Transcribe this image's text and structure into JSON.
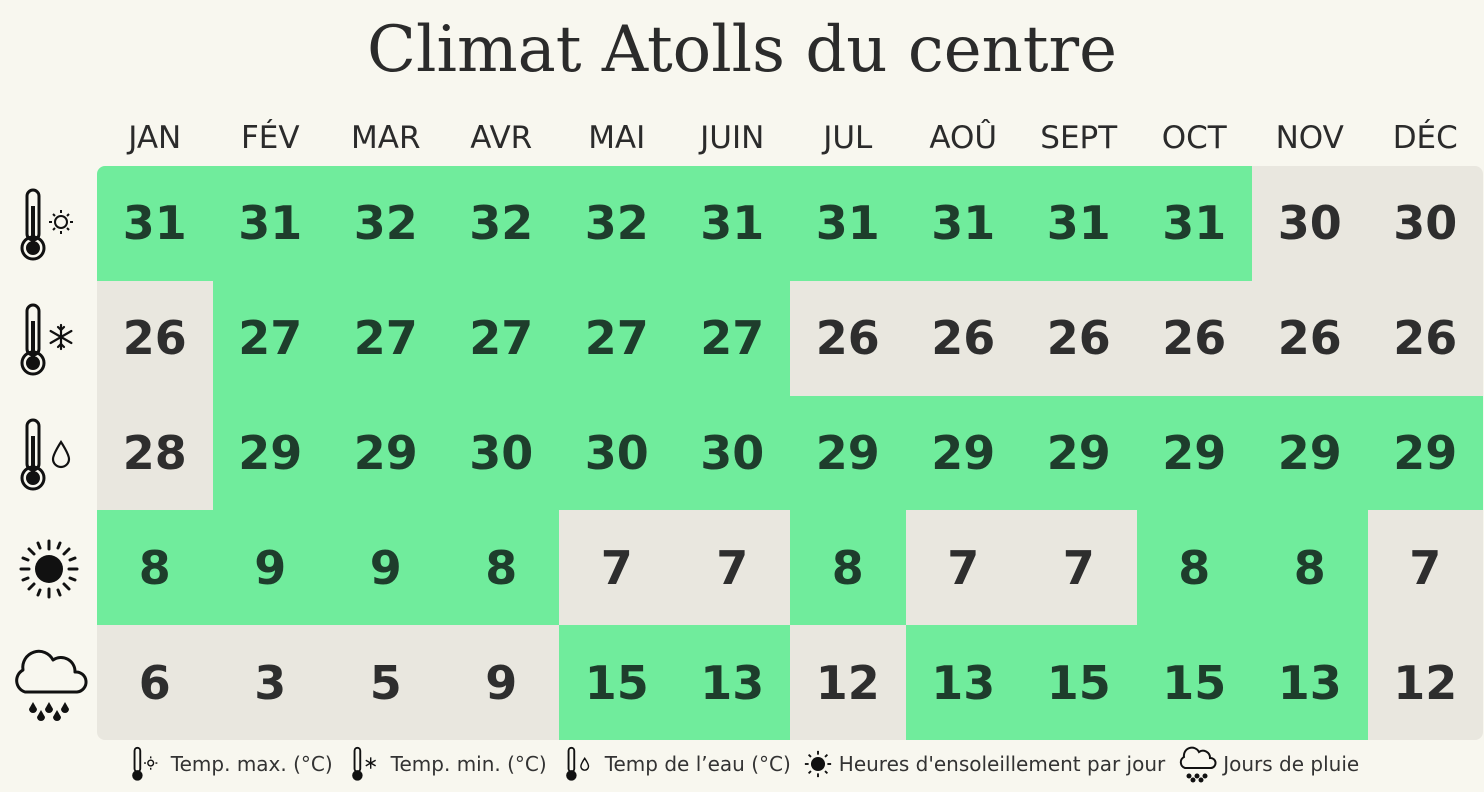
{
  "title": "Climat Atolls du centre",
  "colors": {
    "highlight": "#70ec9c",
    "neutral": "#e9e7df",
    "background": "#f8f7ef"
  },
  "rows": [
    {
      "icon": "thermometer-sun-icon",
      "legend": "Temp. max. (°C)"
    },
    {
      "icon": "thermometer-snowflake-icon",
      "legend": "Temp. min. (°C)"
    },
    {
      "icon": "thermometer-drop-icon",
      "legend": "Temp de l’eau (°C)"
    },
    {
      "icon": "sun-icon",
      "legend": "Heures d'ensoleillement par jour"
    },
    {
      "icon": "rain-cloud-icon",
      "legend": "Jours de pluie"
    }
  ],
  "chart_data": {
    "type": "table",
    "title": "Climat Atolls du centre",
    "columns": [
      "JAN",
      "FÉV",
      "MAR",
      "AVR",
      "MAI",
      "JUIN",
      "JUL",
      "AOÛ",
      "SEPT",
      "OCT",
      "NOV",
      "DÉC"
    ],
    "series": [
      {
        "name": "Temp. max. (°C)",
        "values": [
          31,
          31,
          32,
          32,
          32,
          31,
          31,
          31,
          31,
          31,
          30,
          30
        ],
        "highlighted": [
          true,
          true,
          true,
          true,
          true,
          true,
          true,
          true,
          true,
          true,
          false,
          false
        ]
      },
      {
        "name": "Temp. min. (°C)",
        "values": [
          26,
          27,
          27,
          27,
          27,
          27,
          26,
          26,
          26,
          26,
          26,
          26
        ],
        "highlighted": [
          false,
          true,
          true,
          true,
          true,
          true,
          false,
          false,
          false,
          false,
          false,
          false
        ]
      },
      {
        "name": "Temp de l’eau (°C)",
        "values": [
          28,
          29,
          29,
          30,
          30,
          30,
          29,
          29,
          29,
          29,
          29,
          29
        ],
        "highlighted": [
          false,
          true,
          true,
          true,
          true,
          true,
          true,
          true,
          true,
          true,
          true,
          true
        ]
      },
      {
        "name": "Heures d'ensoleillement par jour",
        "values": [
          8,
          9,
          9,
          8,
          7,
          7,
          8,
          7,
          7,
          8,
          8,
          7
        ],
        "highlighted": [
          true,
          true,
          true,
          true,
          false,
          false,
          true,
          false,
          false,
          true,
          true,
          false
        ]
      },
      {
        "name": "Jours de pluie",
        "values": [
          6,
          3,
          5,
          9,
          15,
          13,
          12,
          13,
          15,
          15,
          13,
          12
        ],
        "highlighted": [
          false,
          false,
          false,
          false,
          true,
          true,
          false,
          true,
          true,
          true,
          true,
          false
        ]
      }
    ]
  }
}
